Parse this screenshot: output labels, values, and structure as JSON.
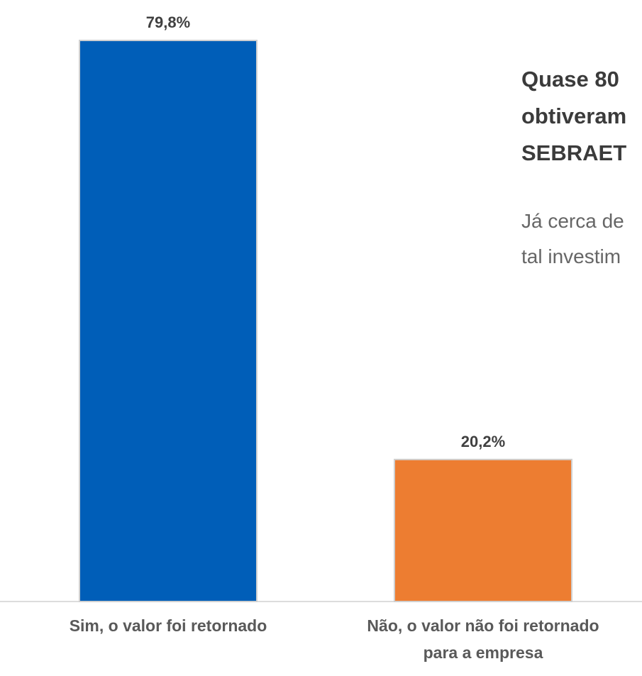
{
  "chart_data": {
    "type": "bar",
    "categories": [
      "Sim, o valor foi retornado",
      "Não, o valor não foi retornado para a empresa"
    ],
    "values": [
      79.8,
      20.2
    ],
    "value_labels": [
      "79,8%",
      "20,2%"
    ],
    "colors": [
      "#005EB8",
      "#ED7D31"
    ],
    "ylim": [
      0,
      80
    ],
    "annotations": {
      "heading": [
        "Quase 80",
        "obtiveram",
        "SEBRAET"
      ],
      "body": [
        "Já cerca de",
        "tal investim"
      ]
    }
  }
}
